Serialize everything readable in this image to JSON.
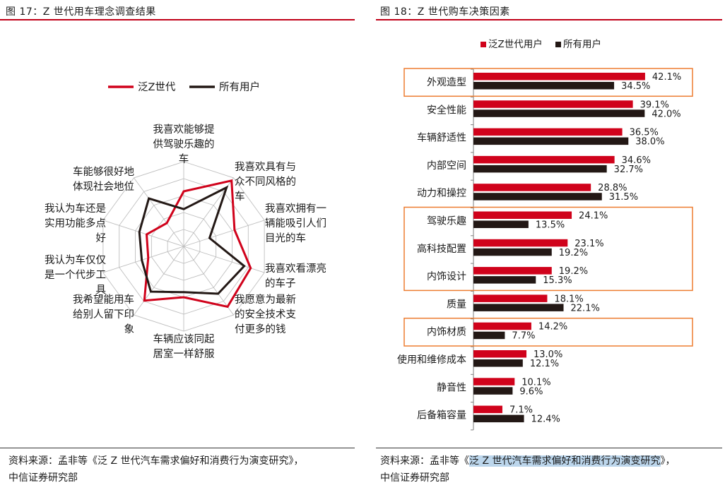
{
  "left": {
    "title": "图 17：Z 世代用车理念调查结果",
    "source_line1": "资料来源：孟非等《泛 Z 世代汽车需求偏好和消费行为演变研究》，",
    "source_line2": "中信证券研究部",
    "colors": {
      "z": "#d0021b",
      "all": "#231815",
      "grid": "#bfbfbf",
      "rule": "#c00018"
    },
    "chart_data": {
      "type": "radar",
      "axes": [
        [
          "我喜欢能够提",
          "供驾驶乐趣的",
          "车"
        ],
        [
          "我喜欢具有与",
          "众不同风格的",
          "车"
        ],
        [
          "我喜欢拥有一",
          "辆能吸引人们",
          "目光的车"
        ],
        [
          "我喜欢看漂亮",
          "的车子"
        ],
        [
          "我愿意为最新",
          "的安全技术支",
          "付更多的钱"
        ],
        [
          "车辆应该同起",
          "居室一样舒服"
        ],
        [
          "我希望能用车",
          "给别人留下印",
          "象"
        ],
        [
          "我认为车仅仅",
          "是一个代步工",
          "具"
        ],
        [
          "我认为车还是",
          "实用功能多点",
          "好"
        ],
        [
          "车能够很好地",
          "体现社会地位"
        ]
      ],
      "series": [
        {
          "name": "泛Z世代",
          "values": [
            0.65,
            0.96,
            0.63,
            0.83,
            0.88,
            0.6,
            0.79,
            0.44,
            0.46,
            0.34
          ]
        },
        {
          "name": "所有用户",
          "values": [
            0.44,
            0.86,
            0.32,
            0.75,
            0.69,
            0.54,
            0.66,
            0.52,
            0.55,
            0.7
          ]
        }
      ],
      "rlim": [
        0,
        1
      ],
      "grid": true,
      "legend": "top"
    }
  },
  "right": {
    "title": "图 18：Z 世代购车决策因素",
    "source_prefix": "资料来源：孟非等《",
    "source_highlight": "泛 Z 世代汽车需求偏好和消费行为演变研究",
    "source_suffix": "》，",
    "source_line2": "中信证券研究部",
    "colors": {
      "z": "#d0021b",
      "all": "#231815",
      "box": "#ed7d31",
      "axis": "#7f7f7f"
    },
    "chart_data": {
      "type": "bar",
      "orientation": "horizontal",
      "categories": [
        "外观造型",
        "安全性能",
        "车辆舒适性",
        "内部空间",
        "动力和操控",
        "驾驶乐趣",
        "高科技配置",
        "内饰设计",
        "质量",
        "内饰材质",
        "使用和维修成本",
        "静音性",
        "后备箱容量"
      ],
      "series": [
        {
          "name": "泛Z世代用户",
          "values": [
            42.1,
            39.1,
            36.5,
            34.6,
            28.8,
            24.1,
            23.1,
            19.2,
            18.1,
            14.2,
            13.0,
            10.1,
            7.1
          ]
        },
        {
          "name": "所有用户",
          "values": [
            34.5,
            42.0,
            38.0,
            32.7,
            31.5,
            13.5,
            19.2,
            15.3,
            22.1,
            7.7,
            12.1,
            9.6,
            12.4
          ]
        }
      ],
      "value_labels": [
        [
          "42.1%",
          "39.1%",
          "36.5%",
          "34.6%",
          "28.8%",
          "24.1%",
          "23.1%",
          "19.2%",
          "18.1%",
          "14.2%",
          "13.0%",
          "10.1%",
          "7.1%"
        ],
        [
          "34.5%",
          "42.0%",
          "38.0%",
          "32.7%",
          "31.5%",
          "13.5%",
          "19.2%",
          "15.3%",
          "22.1%",
          "7.7%",
          "12.1%",
          "9.6%",
          "12.4%"
        ]
      ],
      "xlim": [
        0,
        55
      ],
      "legend": "top",
      "highlight_groups": [
        [
          0,
          0
        ],
        [
          5,
          7
        ],
        [
          9,
          9
        ]
      ]
    }
  }
}
